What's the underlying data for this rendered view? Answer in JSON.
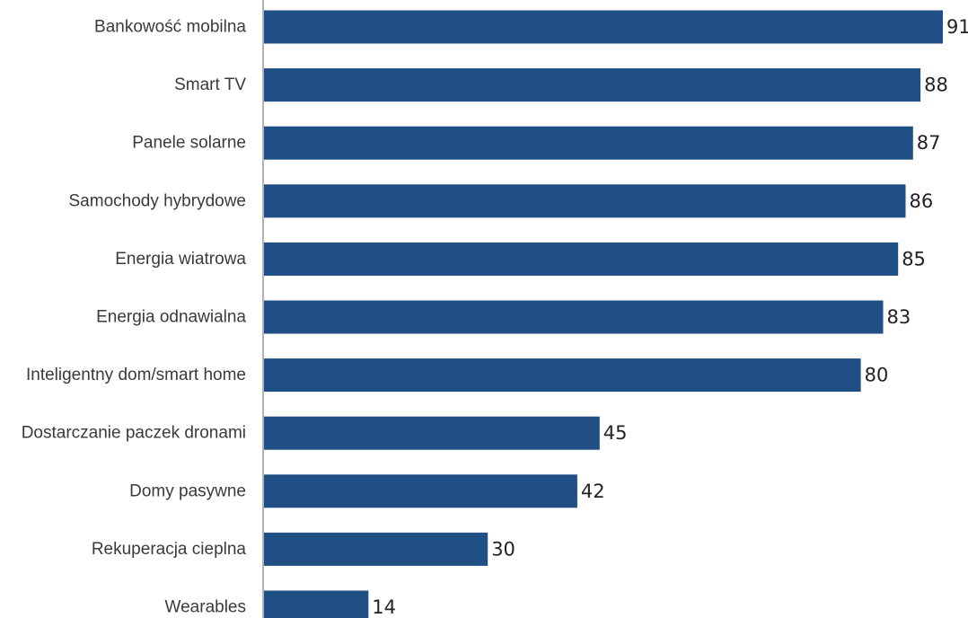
{
  "chart_data": {
    "type": "bar",
    "orientation": "horizontal",
    "title": "",
    "xlabel": "",
    "ylabel": "",
    "categories": [
      "Bankowość mobilna",
      "Smart TV",
      "Panele solarne",
      "Samochody hybrydowe",
      "Energia wiatrowa",
      "Energia odnawialna",
      "Inteligentny dom/smart home",
      "Dostarczanie paczek dronami",
      "Domy pasywne",
      "Rekuperacja cieplna",
      "Wearables"
    ],
    "values": [
      91,
      88,
      87,
      86,
      85,
      83,
      80,
      45,
      42,
      30,
      14
    ],
    "xlim": [
      0,
      91
    ],
    "grid": false,
    "legend": "none",
    "data_labels": true,
    "colors": {
      "bar": "#1f4f84",
      "axis": "#9a9a9a",
      "label_text": "#3a3a3a",
      "value_text": "#222222"
    }
  }
}
